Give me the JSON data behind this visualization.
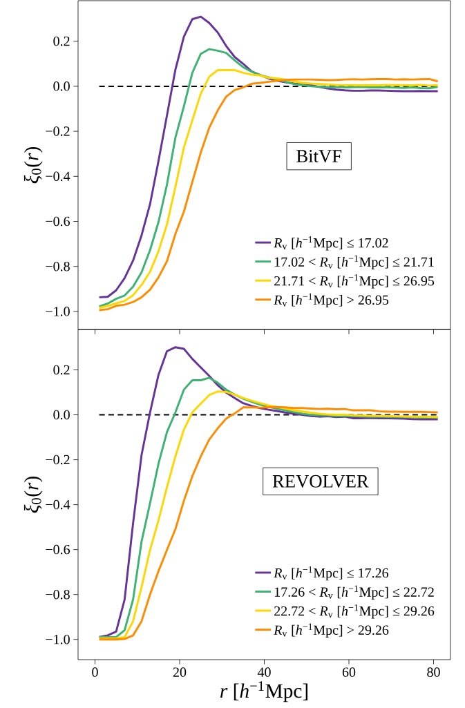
{
  "chart_data": [
    {
      "type": "line",
      "ylabel": "*ξ*$_{0}$(*r*)",
      "annotations": [
        "BitVF"
      ],
      "legend": "bottom right",
      "marker": "none",
      "line_style": "solid",
      "grid": false,
      "tick_labels": "y",
      "x": [
        1,
        3,
        5,
        7,
        9,
        11,
        13,
        15,
        17,
        19,
        21,
        23,
        25,
        27,
        29,
        31,
        33,
        35,
        37,
        39,
        41,
        43,
        45,
        47,
        49,
        51,
        53,
        55,
        57,
        59,
        61,
        63,
        65,
        67,
        69,
        71,
        73,
        75,
        77,
        79,
        81
      ],
      "xlim": [
        -4,
        84
      ],
      "xticks": [
        0,
        20,
        40,
        60,
        80
      ],
      "ylim": [
        -1.08,
        0.38
      ],
      "yticks": [
        {
          "value": -1.0,
          "label": "−1.0"
        },
        {
          "value": -0.8,
          "label": "−0.8"
        },
        {
          "value": -0.6,
          "label": "−0.6"
        },
        {
          "value": -0.4,
          "label": "−0.4"
        },
        {
          "value": -0.2,
          "label": "−0.2"
        },
        {
          "value": 0.0,
          "label": "0.0"
        },
        {
          "value": 0.2,
          "label": "0.2"
        }
      ],
      "ref_lines": [
        {
          "axis": "y",
          "value": 0,
          "color": "#000000",
          "line_style": "dashed"
        }
      ],
      "series": [
        {
          "name": "*R*$_{v}$ [*h*$^{−1}$Mpc] ≤ 17.02",
          "color": "#663399",
          "values": [
            -0.937,
            -0.935,
            -0.906,
            -0.852,
            -0.774,
            -0.662,
            -0.524,
            -0.332,
            -0.13,
            0.074,
            0.22,
            0.298,
            0.309,
            0.281,
            0.239,
            0.179,
            0.13,
            0.1,
            0.066,
            0.05,
            0.035,
            0.025,
            0.018,
            0.012,
            0.01,
            0.005,
            -0.003,
            -0.01,
            -0.015,
            -0.018,
            -0.02,
            -0.02,
            -0.019,
            -0.019,
            -0.02,
            -0.021,
            -0.022,
            -0.022,
            -0.021,
            -0.022,
            -0.022
          ]
        },
        {
          "name": "17.02 < *R*$_{v}$ [*h*$^{−1}$Mpc] ≤ 21.71",
          "color": "#3cb371",
          "values": [
            -0.978,
            -0.965,
            -0.944,
            -0.929,
            -0.89,
            -0.826,
            -0.728,
            -0.603,
            -0.437,
            -0.228,
            -0.09,
            0.06,
            0.144,
            0.165,
            0.158,
            0.148,
            0.115,
            0.085,
            0.065,
            0.05,
            0.04,
            0.03,
            0.02,
            0.01,
            0.005,
            0.0,
            -0.002,
            -0.004,
            -0.003,
            -0.005,
            -0.004,
            -0.003,
            -0.005,
            -0.004,
            -0.005,
            -0.006,
            -0.007,
            -0.005,
            -0.008,
            -0.009,
            -0.003
          ]
        },
        {
          "name": "21.71 < *R*$_{v}$ [*h*$^{−1}$Mpc] ≤ 26.95",
          "color": "#ffd700",
          "values": [
            -0.984,
            -0.975,
            -0.964,
            -0.953,
            -0.928,
            -0.882,
            -0.824,
            -0.733,
            -0.614,
            -0.447,
            -0.272,
            -0.151,
            -0.033,
            0.042,
            0.072,
            0.072,
            0.072,
            0.06,
            0.052,
            0.048,
            0.038,
            0.035,
            0.03,
            0.022,
            0.015,
            0.012,
            0.01,
            0.008,
            0.006,
            0.005,
            0.005,
            0.004,
            0.005,
            0.004,
            0.006,
            0.005,
            0.005,
            0.004,
            0.006,
            0.003,
            0.005
          ]
        },
        {
          "name": "*R*$_{v}$ [*h*$^{−1}$Mpc] > 26.95",
          "color": "#ff8c00",
          "values": [
            -0.994,
            -0.99,
            -0.975,
            -0.97,
            -0.958,
            -0.937,
            -0.903,
            -0.849,
            -0.777,
            -0.656,
            -0.557,
            -0.425,
            -0.294,
            -0.184,
            -0.107,
            -0.046,
            -0.017,
            -0.005,
            0.011,
            0.015,
            0.02,
            0.024,
            0.028,
            0.03,
            0.03,
            0.03,
            0.029,
            0.027,
            0.028,
            0.03,
            0.031,
            0.03,
            0.031,
            0.032,
            0.032,
            0.03,
            0.031,
            0.03,
            0.031,
            0.032,
            0.022
          ]
        }
      ]
    },
    {
      "type": "line",
      "xlabel": "*r* [*h*$^{−1}$Mpc]",
      "ylabel": "*ξ*$_{0}$(*r*)",
      "annotations": [
        "REVOLVER"
      ],
      "legend": "bottom right",
      "marker": "none",
      "line_style": "solid",
      "grid": false,
      "x": [
        1,
        3,
        5,
        7,
        9,
        11,
        13,
        15,
        17,
        19,
        21,
        23,
        25,
        27,
        29,
        31,
        33,
        35,
        37,
        39,
        41,
        43,
        45,
        47,
        49,
        51,
        53,
        55,
        57,
        59,
        61,
        63,
        65,
        67,
        69,
        71,
        73,
        75,
        77,
        79,
        81
      ],
      "xlim": [
        -4,
        84
      ],
      "xticks": [
        0,
        20,
        40,
        60,
        80
      ],
      "ylim": [
        -1.09,
        0.38
      ],
      "yticks": [
        {
          "value": -1.0,
          "label": "−1.0"
        },
        {
          "value": -0.8,
          "label": "−0.8"
        },
        {
          "value": -0.6,
          "label": "−0.6"
        },
        {
          "value": -0.4,
          "label": "−0.4"
        },
        {
          "value": -0.2,
          "label": "−0.2"
        },
        {
          "value": 0.0,
          "label": "0.0"
        },
        {
          "value": 0.2,
          "label": "0.2"
        }
      ],
      "ref_lines": [
        {
          "axis": "y",
          "value": 0,
          "color": "#000000",
          "line_style": "dashed"
        }
      ],
      "series": [
        {
          "name": "*R*$_{v}$ [*h*$^{−1}$Mpc] ≤ 17.26",
          "color": "#663399",
          "values": [
            -0.989,
            -0.982,
            -0.965,
            -0.822,
            -0.482,
            -0.179,
            0.01,
            0.178,
            0.283,
            0.301,
            0.294,
            0.249,
            0.211,
            0.173,
            0.132,
            0.099,
            0.075,
            0.052,
            0.04,
            0.03,
            0.023,
            0.017,
            0.01,
            0.005,
            0.0,
            -0.005,
            -0.008,
            -0.006,
            -0.01,
            -0.008,
            -0.015,
            -0.015,
            -0.014,
            -0.015,
            -0.015,
            -0.016,
            -0.017,
            -0.019,
            -0.02,
            -0.02,
            -0.02
          ]
        },
        {
          "name": "17.26 < *R*$_{v}$ [*h*$^{−1}$Mpc] ≤ 22.72",
          "color": "#3cb371",
          "values": [
            -0.99,
            -0.99,
            -0.99,
            -0.959,
            -0.822,
            -0.564,
            -0.394,
            -0.218,
            -0.077,
            0.011,
            0.112,
            0.154,
            0.154,
            0.165,
            0.143,
            0.112,
            0.09,
            0.072,
            0.058,
            0.045,
            0.035,
            0.028,
            0.02,
            0.012,
            0.005,
            0.0,
            -0.002,
            -0.002,
            -0.005,
            -0.005,
            -0.006,
            -0.007,
            -0.008,
            -0.008,
            -0.009,
            -0.01,
            -0.01,
            -0.011,
            -0.012,
            -0.012,
            -0.013
          ]
        },
        {
          "name": "22.72 < *R*$_{v}$ [*h*$^{−1}$Mpc] ≤ 29.26",
          "color": "#ffd700",
          "values": [
            -0.995,
            -0.995,
            -0.995,
            -0.99,
            -0.919,
            -0.767,
            -0.602,
            -0.47,
            -0.322,
            -0.185,
            -0.066,
            0.011,
            0.05,
            0.088,
            0.104,
            0.102,
            0.09,
            0.075,
            0.063,
            0.052,
            0.042,
            0.035,
            0.028,
            0.02,
            0.015,
            0.01,
            0.005,
            0.002,
            0.0,
            0.0,
            -0.002,
            -0.003,
            -0.004,
            -0.005,
            -0.005,
            -0.006,
            -0.007,
            -0.008,
            -0.008,
            -0.009,
            -0.01
          ]
        },
        {
          "name": "*R*$_{v}$ [*h*$^{−1}$Mpc] > 29.26",
          "color": "#ff8c00",
          "values": [
            -1.0,
            -1.0,
            -1.0,
            -0.998,
            -0.982,
            -0.919,
            -0.8,
            -0.696,
            -0.602,
            -0.509,
            -0.383,
            -0.273,
            -0.185,
            -0.11,
            -0.06,
            -0.017,
            0.006,
            0.033,
            0.033,
            0.032,
            0.034,
            0.035,
            0.033,
            0.03,
            0.03,
            0.028,
            0.026,
            0.027,
            0.025,
            0.026,
            0.02,
            0.02,
            0.02,
            0.016,
            0.014,
            0.014,
            0.013,
            0.013,
            0.013,
            0.012,
            0.011
          ]
        }
      ]
    }
  ]
}
